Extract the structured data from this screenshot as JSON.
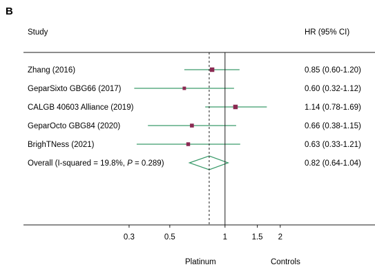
{
  "panel_label": "B",
  "columns": {
    "study_header": "Study",
    "effect_header": "HR (95% CI)"
  },
  "side_labels": {
    "left": "Platinum",
    "right": "Controls"
  },
  "colors": {
    "ci_line": "#3a9a6a",
    "box": "#8a2a52",
    "diamond": "#3a9a6a",
    "axis": "#1a1a1a"
  },
  "chart_data": {
    "type": "forest",
    "x_scale": "log",
    "xlim": [
      0.18,
      3.2
    ],
    "x_ticks": [
      {
        "value": 0.3,
        "label": "0.3"
      },
      {
        "value": 0.5,
        "label": "0.5"
      },
      {
        "value": 1,
        "label": "1"
      },
      {
        "value": 1.5,
        "label": "1.5"
      },
      {
        "value": 2,
        "label": "2"
      }
    ],
    "null_line": 1,
    "overall_line": 0.82,
    "studies": [
      {
        "label": "Zhang (2016)",
        "hr": 0.85,
        "lower": 0.6,
        "upper": 1.2,
        "ci_text": "0.85 (0.60-1.20)",
        "weight": 1.0
      },
      {
        "label": "GeparSixto GBG66 (2017)",
        "hr": 0.6,
        "lower": 0.32,
        "upper": 1.12,
        "ci_text": "0.60 (0.32-1.12)",
        "weight": 0.55
      },
      {
        "label": "CALGB 40603 Alliance (2019)",
        "hr": 1.14,
        "lower": 0.78,
        "upper": 1.69,
        "ci_text": "1.14 (0.78-1.69)",
        "weight": 1.0
      },
      {
        "label": "GeparOcto GBG84 (2020)",
        "hr": 0.66,
        "lower": 0.38,
        "upper": 1.15,
        "ci_text": "0.66 (0.38-1.15)",
        "weight": 0.75
      },
      {
        "label": "BrighTNess (2021)",
        "hr": 0.63,
        "lower": 0.33,
        "upper": 1.21,
        "ci_text": "0.63 (0.33-1.21)",
        "weight": 0.7
      }
    ],
    "overall": {
      "label_prefix": "Overall (I-squared = 19.8%, ",
      "p_symbol": "P",
      "label_suffix": " = 0.289)",
      "hr": 0.82,
      "lower": 0.64,
      "upper": 1.04,
      "ci_text": "0.82 (0.64-1.04)"
    }
  }
}
